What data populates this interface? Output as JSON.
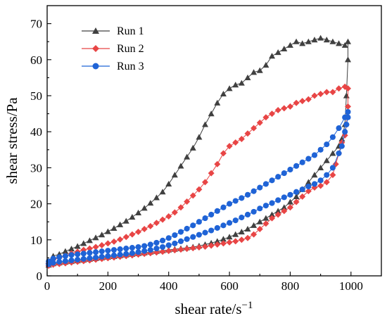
{
  "chart_data": {
    "type": "scatter",
    "xlabel": "shear rate/s",
    "xlabel_sup": "−1",
    "ylabel": "shear stress/Pa",
    "xlim": [
      0,
      1100
    ],
    "ylim": [
      0,
      75
    ],
    "xticks": [
      0,
      200,
      400,
      600,
      800,
      1000
    ],
    "yticks": [
      0,
      10,
      20,
      30,
      40,
      50,
      60,
      70
    ],
    "legend_position": "top-left",
    "series": [
      {
        "name": "Run 1",
        "color": "#404040",
        "marker": "triangle",
        "up": [
          [
            5,
            4
          ],
          [
            20,
            5.5
          ],
          [
            40,
            6
          ],
          [
            60,
            6.8
          ],
          [
            80,
            7.5
          ],
          [
            100,
            8.2
          ],
          [
            120,
            9
          ],
          [
            140,
            9.8
          ],
          [
            160,
            10.6
          ],
          [
            180,
            11.4
          ],
          [
            200,
            12.3
          ],
          [
            220,
            13.2
          ],
          [
            240,
            14.2
          ],
          [
            260,
            15.2
          ],
          [
            280,
            16.3
          ],
          [
            300,
            17.5
          ],
          [
            320,
            18.8
          ],
          [
            340,
            20.2
          ],
          [
            360,
            21.7
          ],
          [
            380,
            23.3
          ],
          [
            400,
            25.5
          ],
          [
            420,
            28
          ],
          [
            440,
            30.5
          ],
          [
            460,
            33
          ],
          [
            480,
            35.5
          ],
          [
            500,
            38.5
          ],
          [
            520,
            42
          ],
          [
            540,
            45
          ],
          [
            560,
            48
          ],
          [
            580,
            50.5
          ],
          [
            600,
            52
          ],
          [
            620,
            53
          ],
          [
            640,
            53.5
          ],
          [
            660,
            55
          ],
          [
            680,
            56.5
          ],
          [
            700,
            57
          ],
          [
            720,
            58.5
          ],
          [
            740,
            61
          ],
          [
            760,
            62
          ],
          [
            780,
            63
          ],
          [
            800,
            64
          ],
          [
            820,
            65
          ],
          [
            840,
            64.5
          ],
          [
            860,
            65
          ],
          [
            880,
            65.5
          ],
          [
            900,
            66
          ],
          [
            920,
            65.5
          ],
          [
            940,
            65
          ],
          [
            960,
            64.5
          ],
          [
            980,
            64
          ],
          [
            990,
            65
          ]
        ],
        "down": [
          [
            990,
            60
          ],
          [
            985,
            50
          ],
          [
            980,
            42
          ],
          [
            970,
            38
          ],
          [
            960,
            36
          ],
          [
            940,
            34
          ],
          [
            920,
            32
          ],
          [
            900,
            30
          ],
          [
            880,
            28
          ],
          [
            860,
            26
          ],
          [
            840,
            24
          ],
          [
            820,
            22
          ],
          [
            800,
            20.5
          ],
          [
            780,
            19
          ],
          [
            760,
            18
          ],
          [
            740,
            17
          ],
          [
            720,
            16
          ],
          [
            700,
            15
          ],
          [
            680,
            14
          ],
          [
            660,
            13
          ],
          [
            640,
            12.2
          ],
          [
            620,
            11.5
          ],
          [
            600,
            10.8
          ],
          [
            580,
            10.2
          ],
          [
            560,
            9.6
          ],
          [
            540,
            9.1
          ],
          [
            520,
            8.7
          ],
          [
            500,
            8.3
          ],
          [
            480,
            8
          ],
          [
            460,
            7.8
          ],
          [
            440,
            7.6
          ],
          [
            420,
            7.4
          ],
          [
            400,
            7.2
          ],
          [
            380,
            7
          ],
          [
            360,
            6.8
          ],
          [
            340,
            6.6
          ],
          [
            320,
            6.4
          ],
          [
            300,
            6.2
          ],
          [
            280,
            6
          ],
          [
            260,
            5.8
          ],
          [
            240,
            5.6
          ],
          [
            220,
            5.4
          ],
          [
            200,
            5.2
          ],
          [
            180,
            5
          ],
          [
            160,
            4.8
          ],
          [
            140,
            4.6
          ],
          [
            120,
            4.4
          ],
          [
            100,
            4.2
          ],
          [
            80,
            4
          ],
          [
            60,
            3.8
          ],
          [
            40,
            3.6
          ],
          [
            20,
            3.4
          ],
          [
            5,
            3
          ]
        ]
      },
      {
        "name": "Run 2",
        "color": "#e84545",
        "marker": "diamond",
        "up": [
          [
            5,
            3.5
          ],
          [
            20,
            4.5
          ],
          [
            40,
            5
          ],
          [
            60,
            5.6
          ],
          [
            80,
            6.2
          ],
          [
            100,
            6.7
          ],
          [
            120,
            7.2
          ],
          [
            140,
            7.6
          ],
          [
            160,
            8
          ],
          [
            180,
            8.5
          ],
          [
            200,
            9
          ],
          [
            220,
            9.5
          ],
          [
            240,
            10.1
          ],
          [
            260,
            10.8
          ],
          [
            280,
            11.5
          ],
          [
            300,
            12.2
          ],
          [
            320,
            13
          ],
          [
            340,
            13.8
          ],
          [
            360,
            14.7
          ],
          [
            380,
            15.6
          ],
          [
            400,
            16.5
          ],
          [
            420,
            17.6
          ],
          [
            440,
            19
          ],
          [
            460,
            20.6
          ],
          [
            480,
            22.3
          ],
          [
            500,
            24
          ],
          [
            520,
            26
          ],
          [
            540,
            28.5
          ],
          [
            560,
            31
          ],
          [
            580,
            34
          ],
          [
            600,
            36
          ],
          [
            620,
            37
          ],
          [
            640,
            38
          ],
          [
            660,
            39.5
          ],
          [
            680,
            41
          ],
          [
            700,
            42.5
          ],
          [
            720,
            44
          ],
          [
            740,
            45
          ],
          [
            760,
            46
          ],
          [
            780,
            46.5
          ],
          [
            800,
            47
          ],
          [
            820,
            48
          ],
          [
            840,
            48.5
          ],
          [
            860,
            49
          ],
          [
            880,
            50
          ],
          [
            900,
            50.5
          ],
          [
            920,
            51
          ],
          [
            940,
            51
          ],
          [
            960,
            52
          ],
          [
            980,
            52.5
          ],
          [
            990,
            52
          ]
        ],
        "down": [
          [
            990,
            47
          ],
          [
            985,
            42
          ],
          [
            980,
            39
          ],
          [
            970,
            37
          ],
          [
            960,
            34
          ],
          [
            950,
            31
          ],
          [
            940,
            28
          ],
          [
            920,
            26
          ],
          [
            900,
            25
          ],
          [
            880,
            24.5
          ],
          [
            860,
            23.5
          ],
          [
            840,
            22
          ],
          [
            820,
            20.5
          ],
          [
            800,
            19
          ],
          [
            780,
            18
          ],
          [
            760,
            17
          ],
          [
            740,
            16
          ],
          [
            720,
            14.5
          ],
          [
            700,
            13
          ],
          [
            680,
            11.5
          ],
          [
            660,
            10.5
          ],
          [
            640,
            10
          ],
          [
            620,
            9.6
          ],
          [
            600,
            9.3
          ],
          [
            580,
            9
          ],
          [
            560,
            8.7
          ],
          [
            540,
            8.4
          ],
          [
            520,
            8.1
          ],
          [
            500,
            7.9
          ],
          [
            480,
            7.7
          ],
          [
            460,
            7.5
          ],
          [
            440,
            7.3
          ],
          [
            420,
            7.1
          ],
          [
            400,
            6.9
          ],
          [
            380,
            6.7
          ],
          [
            360,
            6.5
          ],
          [
            340,
            6.3
          ],
          [
            320,
            6.1
          ],
          [
            300,
            5.9
          ],
          [
            280,
            5.7
          ],
          [
            260,
            5.5
          ],
          [
            240,
            5.3
          ],
          [
            220,
            5.1
          ],
          [
            200,
            4.9
          ],
          [
            180,
            4.7
          ],
          [
            160,
            4.5
          ],
          [
            140,
            4.3
          ],
          [
            120,
            4.1
          ],
          [
            100,
            3.9
          ],
          [
            80,
            3.7
          ],
          [
            60,
            3.5
          ],
          [
            40,
            3.3
          ],
          [
            20,
            3.1
          ],
          [
            5,
            2.8
          ]
        ]
      },
      {
        "name": "Run 3",
        "color": "#1f63d6",
        "marker": "circle",
        "up": [
          [
            5,
            4
          ],
          [
            20,
            4.8
          ],
          [
            40,
            5.2
          ],
          [
            60,
            5.5
          ],
          [
            80,
            5.8
          ],
          [
            100,
            6
          ],
          [
            120,
            6.2
          ],
          [
            140,
            6.4
          ],
          [
            160,
            6.6
          ],
          [
            180,
            6.8
          ],
          [
            200,
            7
          ],
          [
            220,
            7.2
          ],
          [
            240,
            7.4
          ],
          [
            260,
            7.6
          ],
          [
            280,
            7.8
          ],
          [
            300,
            8
          ],
          [
            320,
            8.3
          ],
          [
            340,
            8.7
          ],
          [
            360,
            9.2
          ],
          [
            380,
            9.8
          ],
          [
            400,
            10.5
          ],
          [
            420,
            11.3
          ],
          [
            440,
            12.2
          ],
          [
            460,
            13.1
          ],
          [
            480,
            14
          ],
          [
            500,
            15
          ],
          [
            520,
            16
          ],
          [
            540,
            17
          ],
          [
            560,
            18
          ],
          [
            580,
            19
          ],
          [
            600,
            20
          ],
          [
            620,
            20.8
          ],
          [
            640,
            21.6
          ],
          [
            660,
            22.5
          ],
          [
            680,
            23.5
          ],
          [
            700,
            24.5
          ],
          [
            720,
            25.5
          ],
          [
            740,
            26.5
          ],
          [
            760,
            27.5
          ],
          [
            780,
            28.5
          ],
          [
            800,
            29.5
          ],
          [
            820,
            30.5
          ],
          [
            840,
            31.5
          ],
          [
            860,
            32.5
          ],
          [
            880,
            33.5
          ],
          [
            900,
            35
          ],
          [
            920,
            36.5
          ],
          [
            940,
            38.5
          ],
          [
            960,
            41
          ],
          [
            980,
            44
          ],
          [
            990,
            45.5
          ]
        ],
        "down": [
          [
            990,
            44
          ],
          [
            985,
            42
          ],
          [
            980,
            40
          ],
          [
            970,
            36
          ],
          [
            960,
            34
          ],
          [
            940,
            30
          ],
          [
            920,
            28
          ],
          [
            900,
            26.5
          ],
          [
            880,
            25.5
          ],
          [
            860,
            24.8
          ],
          [
            840,
            24
          ],
          [
            820,
            23.3
          ],
          [
            800,
            22.5
          ],
          [
            780,
            21.8
          ],
          [
            760,
            21
          ],
          [
            740,
            20.2
          ],
          [
            720,
            19.5
          ],
          [
            700,
            18.7
          ],
          [
            680,
            17.8
          ],
          [
            660,
            17
          ],
          [
            640,
            16.2
          ],
          [
            620,
            15.4
          ],
          [
            600,
            14.7
          ],
          [
            580,
            14
          ],
          [
            560,
            13.3
          ],
          [
            540,
            12.6
          ],
          [
            520,
            12
          ],
          [
            500,
            11.4
          ],
          [
            480,
            10.8
          ],
          [
            460,
            10.2
          ],
          [
            440,
            9.6
          ],
          [
            420,
            9
          ],
          [
            400,
            8.5
          ],
          [
            380,
            8
          ],
          [
            360,
            7.6
          ],
          [
            340,
            7.2
          ],
          [
            320,
            6.9
          ],
          [
            300,
            6.6
          ],
          [
            280,
            6.3
          ],
          [
            260,
            6.1
          ],
          [
            240,
            5.9
          ],
          [
            220,
            5.7
          ],
          [
            200,
            5.5
          ],
          [
            180,
            5.3
          ],
          [
            160,
            5.1
          ],
          [
            140,
            4.9
          ],
          [
            120,
            4.7
          ],
          [
            100,
            4.5
          ],
          [
            80,
            4.3
          ],
          [
            60,
            4.1
          ],
          [
            40,
            3.9
          ],
          [
            20,
            3.6
          ],
          [
            5,
            3.2
          ]
        ]
      }
    ]
  }
}
